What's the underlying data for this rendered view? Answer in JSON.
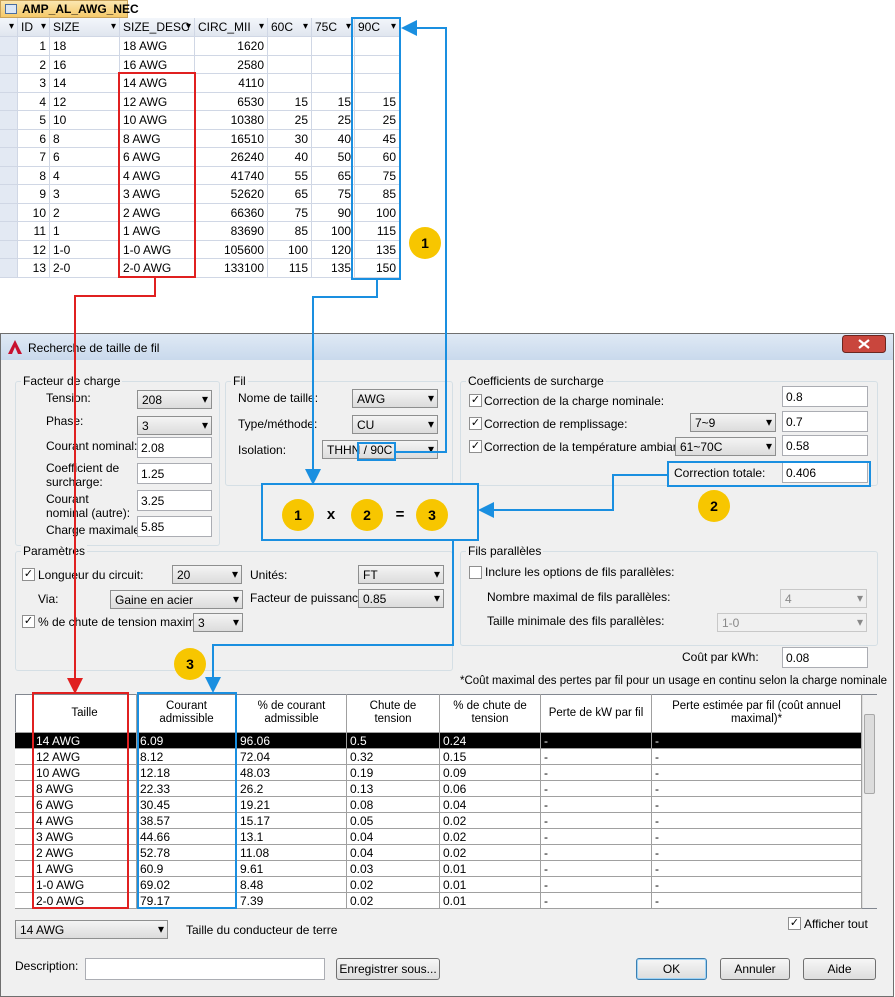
{
  "table": {
    "name": "AMP_AL_AWG_NEC",
    "columns": [
      "ID",
      "SIZE",
      "SIZE_DESC",
      "CIRC_MII",
      "60C",
      "75C",
      "90C"
    ],
    "rows": [
      [
        "1",
        "18",
        "18 AWG",
        "1620",
        null,
        null,
        null
      ],
      [
        "2",
        "16",
        "16 AWG",
        "2580",
        null,
        null,
        null
      ],
      [
        "3",
        "14",
        "14 AWG",
        "4110",
        null,
        null,
        null
      ],
      [
        "4",
        "12",
        "12 AWG",
        "6530",
        "15",
        "15",
        "15"
      ],
      [
        "5",
        "10",
        "10 AWG",
        "10380",
        "25",
        "25",
        "25"
      ],
      [
        "6",
        "8",
        "8 AWG",
        "16510",
        "30",
        "40",
        "45"
      ],
      [
        "7",
        "6",
        "6 AWG",
        "26240",
        "40",
        "50",
        "60"
      ],
      [
        "8",
        "4",
        "4 AWG",
        "41740",
        "55",
        "65",
        "75"
      ],
      [
        "9",
        "3",
        "3 AWG",
        "52620",
        "65",
        "75",
        "85"
      ],
      [
        "10",
        "2",
        "2 AWG",
        "66360",
        "75",
        "90",
        "100"
      ],
      [
        "11",
        "1",
        "1 AWG",
        "83690",
        "85",
        "100",
        "115"
      ],
      [
        "12",
        "1-0",
        "1-0 AWG",
        "105600",
        "100",
        "120",
        "135"
      ],
      [
        "13",
        "2-0",
        "2-0 AWG",
        "133100",
        "115",
        "135",
        "150"
      ]
    ]
  },
  "dialog": {
    "title": "Recherche de taille de fil",
    "load_factor": {
      "title": "Facteur de charge",
      "fields": [
        {
          "label": "Tension:",
          "value": "208"
        },
        {
          "label": "Phase:",
          "value": "3"
        },
        {
          "label": "Courant nominal:",
          "value": "2.08"
        },
        {
          "label": "Coefficient de surcharge:",
          "value": "1.25"
        },
        {
          "label": "Courant nominal (autre):",
          "value": "3.25"
        },
        {
          "label": "Charge maximale:",
          "value": "5.85"
        }
      ]
    },
    "wire": {
      "title": "Fil",
      "fields": [
        {
          "label": "Nome de taille:",
          "value": "AWG"
        },
        {
          "label": "Type/méthode:",
          "value": "CU"
        },
        {
          "label": "Isolation:",
          "value": "THHN / 90C"
        }
      ]
    },
    "overload": {
      "title": "Coefficients de surcharge",
      "fields": [
        {
          "label": "Correction de la charge nominale:",
          "checked": true,
          "value": "0.8"
        },
        {
          "label": "Correction de remplissage:",
          "checked": true,
          "option": "7~9",
          "value": "0.7"
        },
        {
          "label": "Correction de la température ambiante:",
          "checked": true,
          "option": "61~70C",
          "value": "0.58"
        }
      ],
      "total": {
        "label": "Correction totale:",
        "value": "0.406"
      }
    },
    "parameters": {
      "title": "Paramètres",
      "length": {
        "label": "Longueur du circuit:",
        "checked": true,
        "value": "20"
      },
      "units": {
        "label": "Unités:",
        "value": "FT"
      },
      "via": {
        "label": "Via:",
        "value": "Gaine en acier"
      },
      "power_factor": {
        "label": "Facteur de puissance:",
        "value": "0.85"
      },
      "max_drop": {
        "label": "% de chute de tension maximal:",
        "checked": true,
        "value": "3"
      }
    },
    "parallel": {
      "title": "Fils parallèles",
      "include": {
        "label": "Inclure les options de fils parallèles:",
        "checked": false
      },
      "max_count": {
        "label": "Nombre maximal de fils parallèles:",
        "value": "4"
      },
      "min_size": {
        "label": "Taille minimale des fils parallèles:",
        "value": "1-0"
      }
    },
    "cost": {
      "label": "Coût par kWh:",
      "value": "0.08"
    },
    "note": "*Coût maximal des pertes par fil pour un usage en continu selon la charge nominale",
    "results": {
      "columns": [
        "Taille",
        "Courant admissible",
        "% de courant admissible",
        "Chute de tension",
        "% de chute de tension",
        "Perte de kW par fil",
        "Perte estimée par fil (coût annuel maximal)*"
      ],
      "rows": [
        [
          "14 AWG",
          "6.09",
          "96.06",
          "0.5",
          "0.24",
          "-",
          "-"
        ],
        [
          "12 AWG",
          "8.12",
          "72.04",
          "0.32",
          "0.15",
          "-",
          "-"
        ],
        [
          "10 AWG",
          "12.18",
          "48.03",
          "0.19",
          "0.09",
          "-",
          "-"
        ],
        [
          "8 AWG",
          "22.33",
          "26.2",
          "0.13",
          "0.06",
          "-",
          "-"
        ],
        [
          "6 AWG",
          "30.45",
          "19.21",
          "0.08",
          "0.04",
          "-",
          "-"
        ],
        [
          "4 AWG",
          "38.57",
          "15.17",
          "0.05",
          "0.02",
          "-",
          "-"
        ],
        [
          "3 AWG",
          "44.66",
          "13.1",
          "0.04",
          "0.02",
          "-",
          "-"
        ],
        [
          "2 AWG",
          "52.78",
          "11.08",
          "0.04",
          "0.02",
          "-",
          "-"
        ],
        [
          "1 AWG",
          "60.9",
          "9.61",
          "0.03",
          "0.01",
          "-",
          "-"
        ],
        [
          "1-0 AWG",
          "69.02",
          "8.48",
          "0.02",
          "0.01",
          "-",
          "-"
        ],
        [
          "2-0 AWG",
          "79.17",
          "7.39",
          "0.02",
          "0.01",
          "-",
          "-"
        ]
      ]
    },
    "ground": {
      "value": "14 AWG",
      "label": "Taille du conducteur de terre"
    },
    "show_all": {
      "label": "Afficher tout",
      "checked": true
    },
    "description": {
      "label": "Description:"
    },
    "buttons": {
      "save": "Enregistrer sous...",
      "ok": "OK",
      "cancel": "Annuler",
      "help": "Aide"
    }
  },
  "annotations": {
    "badges": [
      "1",
      "2",
      "3"
    ],
    "operators": [
      "x",
      "="
    ]
  }
}
